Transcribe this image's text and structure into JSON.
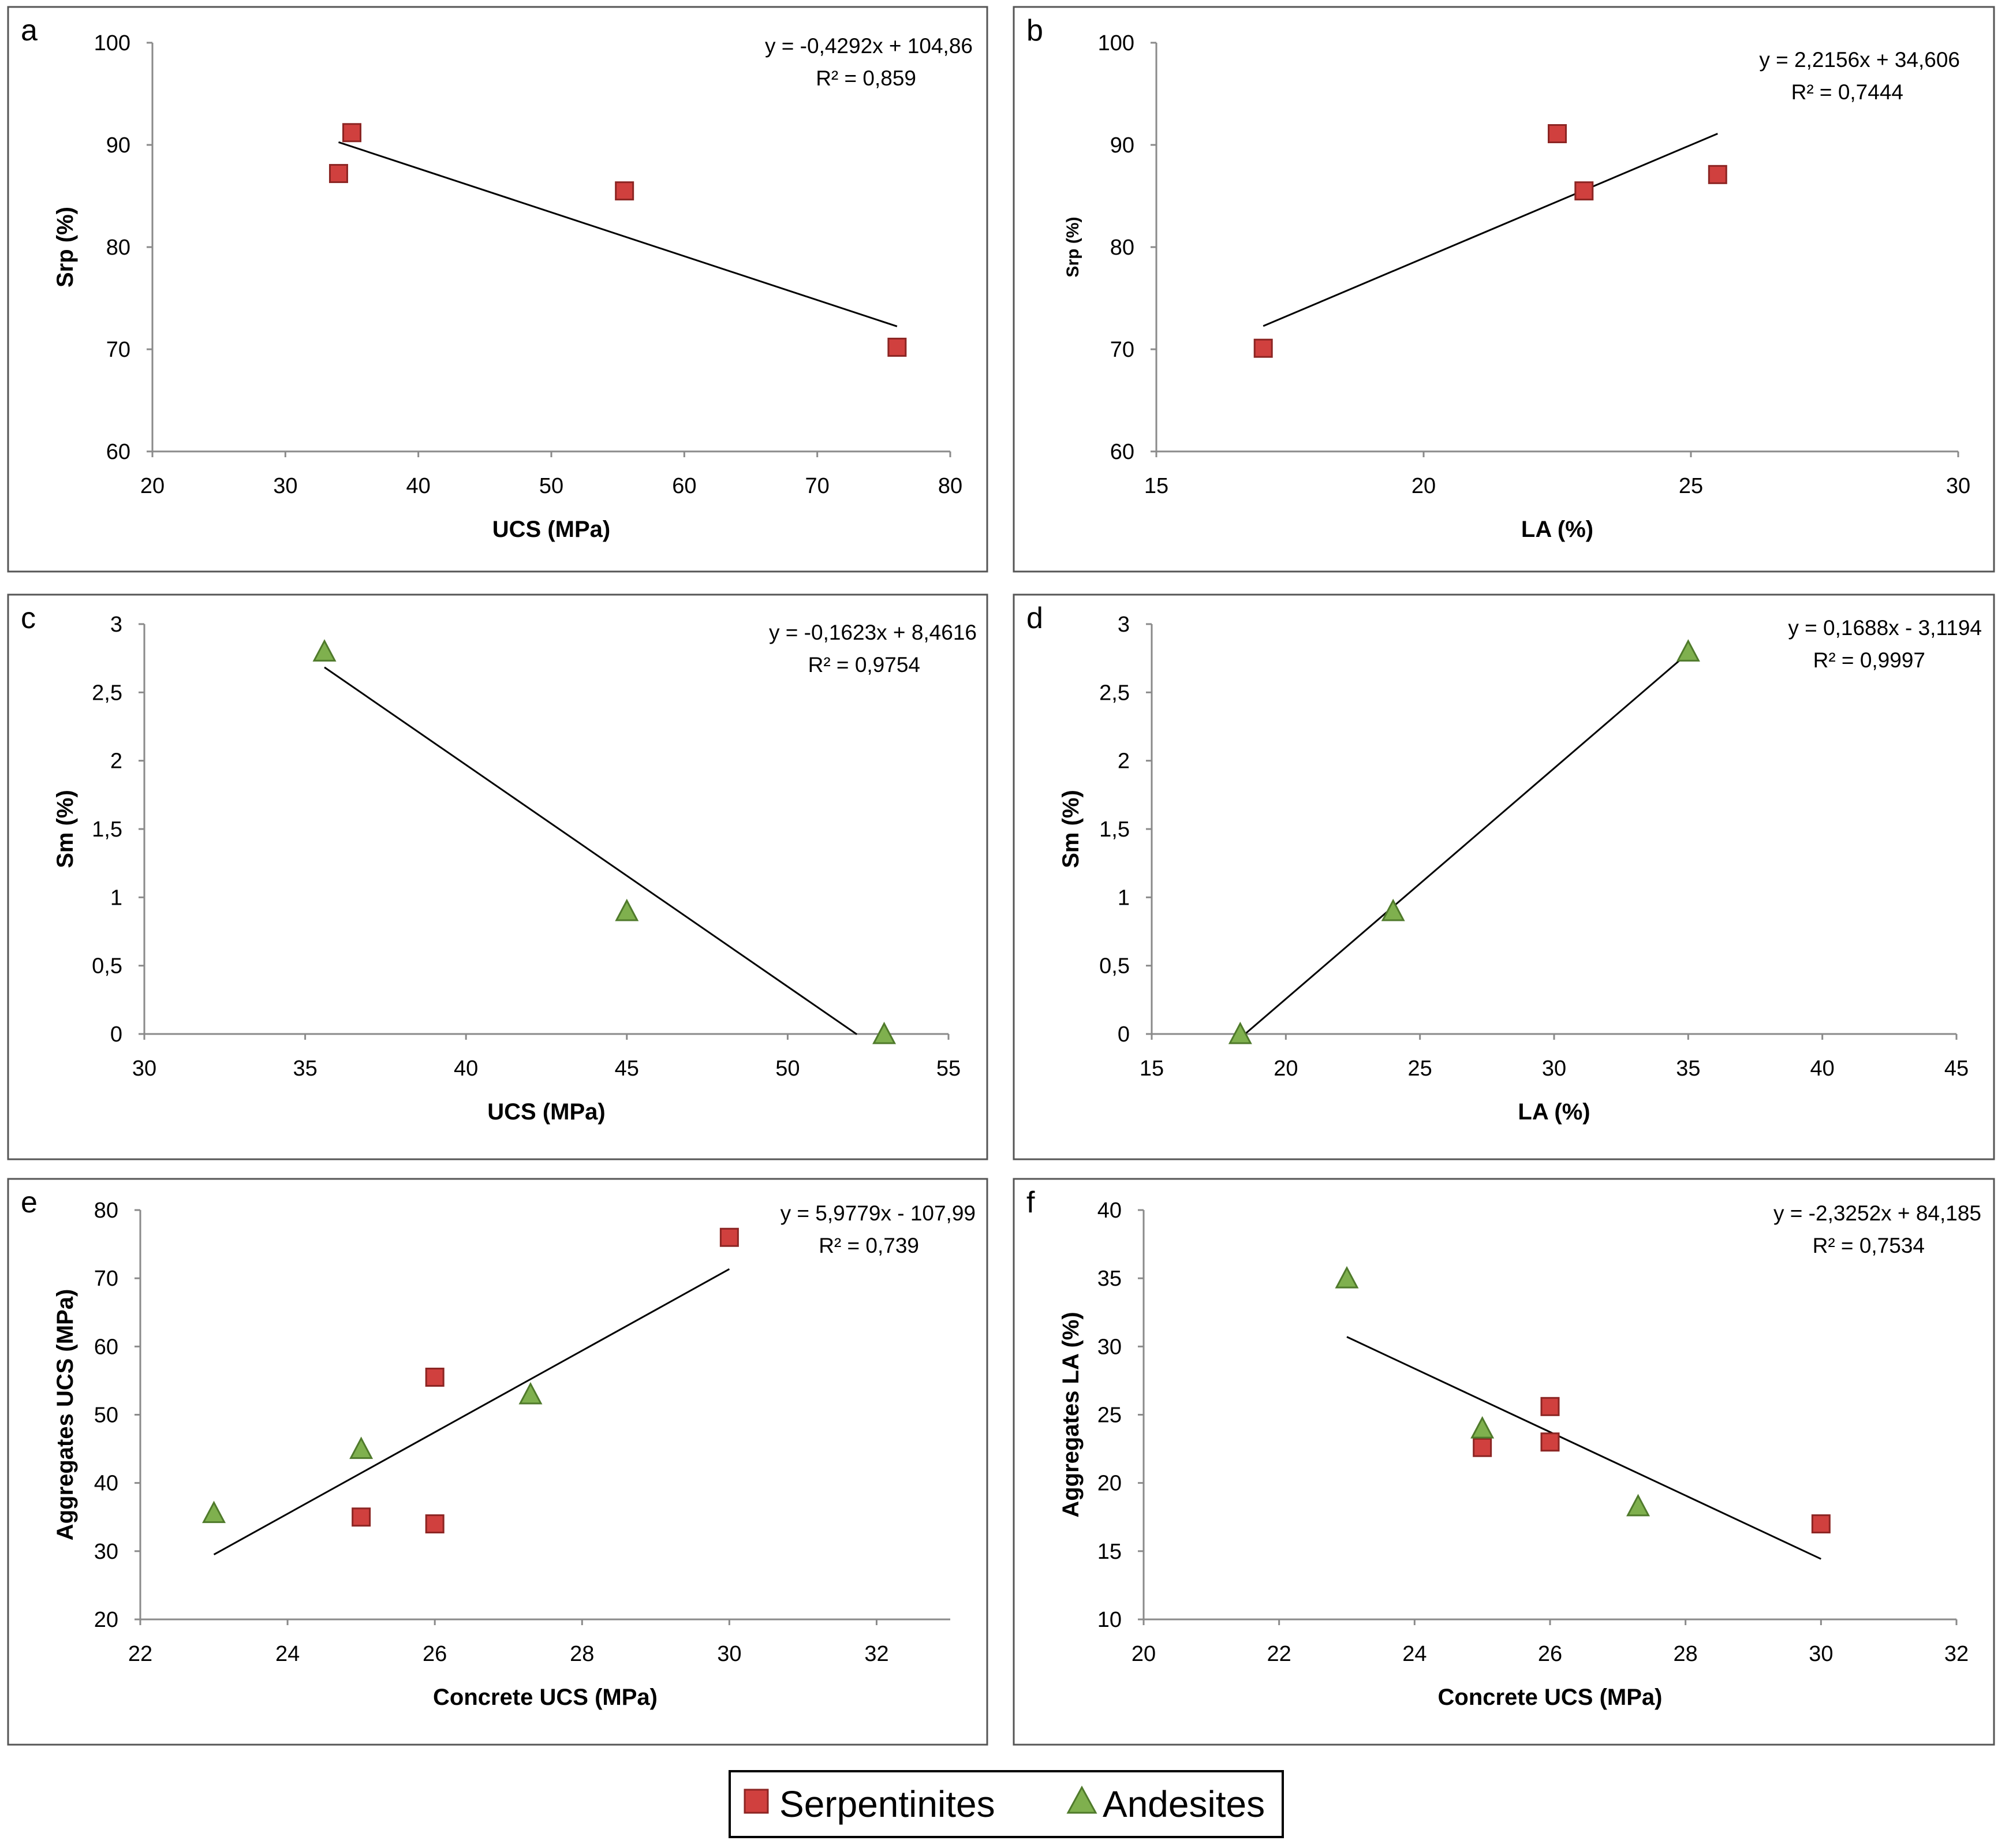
{
  "chart_data": [
    {
      "type": "scatter",
      "panel": "a",
      "xlabel": "UCS (MPa)",
      "ylabel": "Srp (%)",
      "xlim": [
        20,
        80
      ],
      "ylim": [
        60,
        100
      ],
      "xticks": [
        20,
        30,
        40,
        50,
        60,
        70,
        80
      ],
      "yticks": [
        60,
        70,
        80,
        90,
        100
      ],
      "x_tick_labels": [
        "20",
        "30",
        "40",
        "50",
        "60",
        "70",
        "80"
      ],
      "y_tick_labels": [
        "60",
        "70",
        "80",
        "90",
        "100"
      ],
      "equation": "y = -0,4292x + 104,86",
      "r_squared": "R² = 0,859",
      "trendline": {
        "slope": -0.4292,
        "intercept": 104.86,
        "x_range": [
          34,
          76
        ]
      },
      "series": [
        {
          "name": "Serpentinites",
          "marker": "square",
          "points": [
            [
              34,
              87.2
            ],
            [
              35,
              91.2
            ],
            [
              55.5,
              85.5
            ],
            [
              76,
              70.2
            ]
          ]
        }
      ]
    },
    {
      "type": "scatter",
      "panel": "b",
      "xlabel": "LA (%)",
      "ylabel": "Srp (%)",
      "xlim": [
        15,
        30
      ],
      "ylim": [
        60,
        100
      ],
      "xticks": [
        15,
        20,
        25,
        30
      ],
      "yticks": [
        60,
        70,
        80,
        90,
        100
      ],
      "x_tick_labels": [
        "15",
        "20",
        "25",
        "30"
      ],
      "y_tick_labels": [
        "60",
        "70",
        "80",
        "90",
        "100"
      ],
      "equation": "y = 2,2156x + 34,606",
      "r_squared": "R² = 0,7444",
      "trendline": {
        "slope": 2.2156,
        "intercept": 34.606,
        "x_range": [
          17,
          25.5
        ]
      },
      "series": [
        {
          "name": "Serpentinites",
          "marker": "square",
          "points": [
            [
              17,
              70.1
            ],
            [
              22.5,
              91.1
            ],
            [
              23,
              85.5
            ],
            [
              25.5,
              87.1
            ]
          ]
        }
      ]
    },
    {
      "type": "scatter",
      "panel": "c",
      "xlabel": "UCS (MPa)",
      "ylabel": "Sm (%)",
      "xlim": [
        30,
        55
      ],
      "ylim": [
        0,
        3
      ],
      "xticks": [
        30,
        35,
        40,
        45,
        50,
        55
      ],
      "yticks": [
        0,
        0.5,
        1,
        1.5,
        2,
        2.5,
        3
      ],
      "x_tick_labels": [
        "30",
        "35",
        "40",
        "45",
        "50",
        "55"
      ],
      "y_tick_labels": [
        "0",
        "0,5",
        "1",
        "1,5",
        "2",
        "2,5",
        "3"
      ],
      "equation": "y = -0,1623x + 8,4616",
      "r_squared": "R² = 0,9754",
      "trendline": {
        "slope": -0.1623,
        "intercept": 8.4616,
        "x_range": [
          35.6,
          52.15
        ]
      },
      "series": [
        {
          "name": "Andesites",
          "marker": "triangle",
          "points": [
            [
              35.6,
              2.8
            ],
            [
              45,
              0.9
            ],
            [
              53,
              0.0
            ]
          ]
        }
      ]
    },
    {
      "type": "scatter",
      "panel": "d",
      "xlabel": "LA (%)",
      "ylabel": "Sm (%)",
      "xlim": [
        15,
        45
      ],
      "ylim": [
        0,
        3
      ],
      "xticks": [
        15,
        20,
        25,
        30,
        35,
        40,
        45
      ],
      "yticks": [
        0,
        0.5,
        1,
        1.5,
        2,
        2.5,
        3
      ],
      "x_tick_labels": [
        "15",
        "20",
        "25",
        "30",
        "35",
        "40",
        "45"
      ],
      "y_tick_labels": [
        "0",
        "0,5",
        "1",
        "1,5",
        "2",
        "2,5",
        "3"
      ],
      "equation": "y = 0,1688x - 3,1194",
      "r_squared": "R² = 0,9997",
      "trendline": {
        "slope": 0.1688,
        "intercept": -3.1194,
        "x_range": [
          18.48,
          35
        ]
      },
      "series": [
        {
          "name": "Andesites",
          "marker": "triangle",
          "points": [
            [
              18.3,
              0.0
            ],
            [
              24,
              0.9
            ],
            [
              35,
              2.8
            ]
          ]
        }
      ]
    },
    {
      "type": "scatter",
      "panel": "e",
      "xlabel": "Concrete UCS (MPa)",
      "ylabel": "Aggregates UCS (MPa)",
      "xlim": [
        22,
        33
      ],
      "ylim": [
        20,
        80
      ],
      "xticks": [
        22,
        24,
        26,
        28,
        30,
        32
      ],
      "yticks": [
        20,
        30,
        40,
        50,
        60,
        70,
        80
      ],
      "x_tick_labels": [
        "22",
        "24",
        "26",
        "28",
        "30",
        "32"
      ],
      "y_tick_labels": [
        "20",
        "30",
        "40",
        "50",
        "60",
        "70",
        "80"
      ],
      "equation": "y = 5,9779x - 107,99",
      "r_squared": "R² = 0,739",
      "trendline": {
        "slope": 5.9779,
        "intercept": -107.99,
        "x_range": [
          23,
          30
        ]
      },
      "series": [
        {
          "name": "Serpentinites",
          "marker": "square",
          "points": [
            [
              25,
              35
            ],
            [
              26,
              34
            ],
            [
              26,
              55.5
            ],
            [
              30,
              76
            ]
          ]
        },
        {
          "name": "Andesites",
          "marker": "triangle",
          "points": [
            [
              23,
              35.6
            ],
            [
              25,
              45
            ],
            [
              27.3,
              53
            ]
          ]
        }
      ]
    },
    {
      "type": "scatter",
      "panel": "f",
      "xlabel": "Concrete UCS (MPa)",
      "ylabel": "Aggregates LA (%)",
      "xlim": [
        20,
        32
      ],
      "ylim": [
        10,
        40
      ],
      "xticks": [
        20,
        22,
        24,
        26,
        28,
        30,
        32
      ],
      "yticks": [
        10,
        15,
        20,
        25,
        30,
        35,
        40
      ],
      "x_tick_labels": [
        "20",
        "22",
        "24",
        "26",
        "28",
        "30",
        "32"
      ],
      "y_tick_labels": [
        "10",
        "15",
        "20",
        "25",
        "30",
        "35",
        "40"
      ],
      "equation": "y = -2,3252x + 84,185",
      "r_squared": "R² = 0,7534",
      "trendline": {
        "slope": -2.3252,
        "intercept": 84.185,
        "x_range": [
          23,
          30
        ]
      },
      "series": [
        {
          "name": "Serpentinites",
          "marker": "square",
          "points": [
            [
              25,
              22.6
            ],
            [
              26,
              23
            ],
            [
              26,
              25.6
            ],
            [
              30,
              17
            ]
          ]
        },
        {
          "name": "Andesites",
          "marker": "triangle",
          "points": [
            [
              23,
              35
            ],
            [
              25,
              24
            ],
            [
              27.3,
              18.3
            ]
          ]
        }
      ]
    }
  ],
  "legend": {
    "position": "bottom-center",
    "entries": [
      {
        "name": "Serpentinites",
        "marker": "square"
      },
      {
        "name": "Andesites",
        "marker": "triangle"
      }
    ]
  },
  "colors": {
    "serpentinites_fill": "#d0403e",
    "serpentinites_stroke": "#8c2523",
    "andesites_fill": "#7fb04e",
    "andesites_stroke": "#4f7a2b",
    "axis": "#8a8a8a",
    "trendline": "#000000",
    "frame": "#555555"
  }
}
